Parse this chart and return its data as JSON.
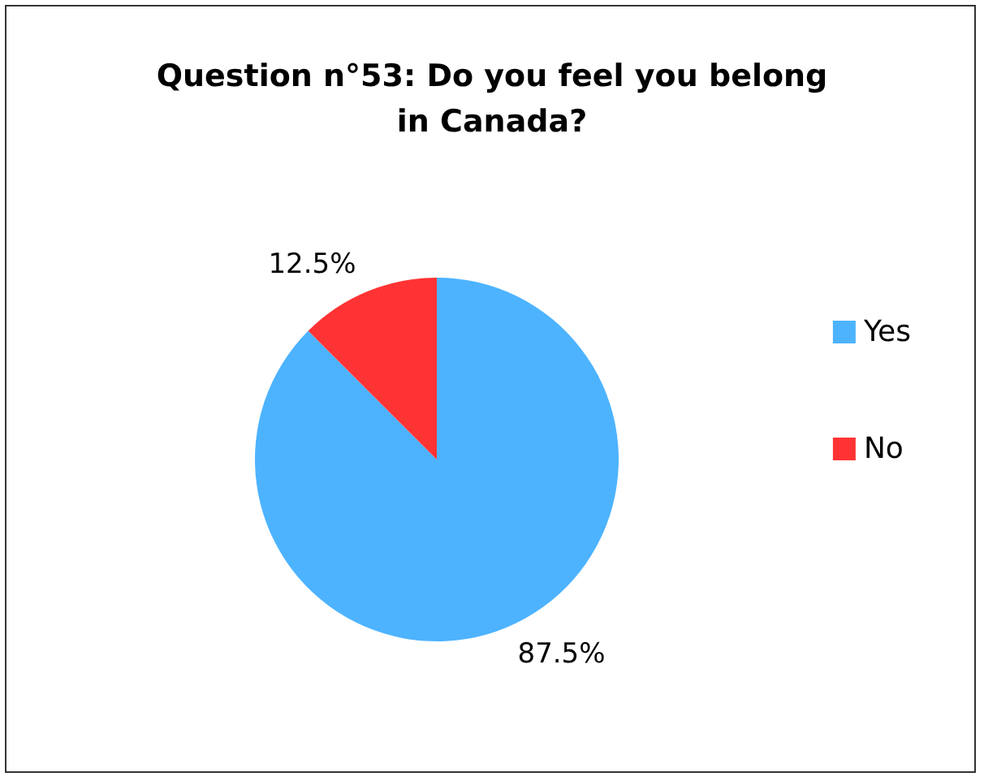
{
  "chart_data": {
    "type": "pie",
    "title": "Question n°53: Do you feel you belong\nin Canada?",
    "categories": [
      "Yes",
      "No"
    ],
    "values": [
      87.5,
      12.5
    ],
    "colors": [
      "#4db3ff",
      "#ff3333"
    ],
    "value_labels": [
      "87.5%",
      "12.5%"
    ],
    "legend": "right"
  }
}
